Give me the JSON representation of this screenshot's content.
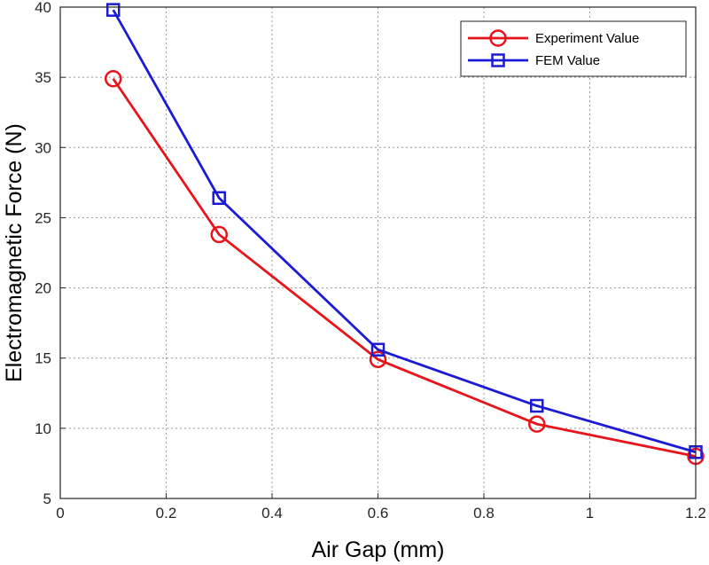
{
  "chart_data": {
    "type": "line",
    "title": "",
    "xlabel": "Air Gap (mm)",
    "ylabel": "Electromagnetic Force (N)",
    "xlim": [
      0,
      1.2
    ],
    "ylim": [
      5,
      40
    ],
    "xticks": [
      0,
      0.2,
      0.4,
      0.6,
      0.8,
      1,
      1.2
    ],
    "xtick_labels": [
      "0",
      "0.2",
      "0.4",
      "0.6",
      "0.8",
      "1",
      "1.2"
    ],
    "yticks": [
      5,
      10,
      15,
      20,
      25,
      30,
      35,
      40
    ],
    "ytick_labels": [
      "5",
      "10",
      "15",
      "20",
      "25",
      "30",
      "35",
      "40"
    ],
    "grid": true,
    "legend_position": "top-right",
    "series": [
      {
        "name": "Experiment Value",
        "color": "#e8141b",
        "marker": "circle",
        "x": [
          0.1,
          0.3,
          0.6,
          0.9,
          1.2
        ],
        "y": [
          34.9,
          23.8,
          14.9,
          10.3,
          8.0
        ]
      },
      {
        "name": "FEM Value",
        "color": "#1b1bd6",
        "marker": "square",
        "x": [
          0.1,
          0.3,
          0.6,
          0.9,
          1.2
        ],
        "y": [
          39.8,
          26.4,
          15.6,
          11.6,
          8.3
        ]
      }
    ]
  }
}
